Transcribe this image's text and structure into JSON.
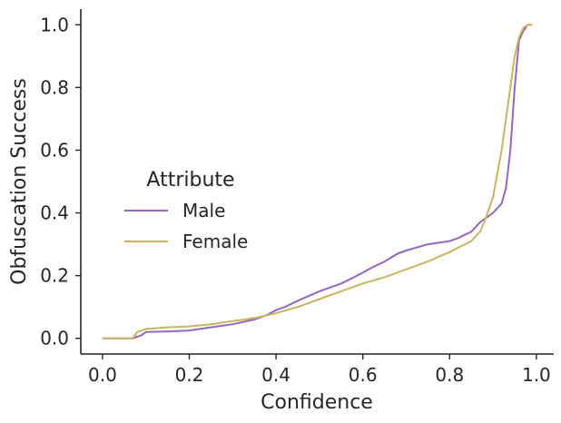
{
  "chart_data": {
    "type": "line",
    "title": "",
    "xlabel": "Confidence",
    "ylabel": "Obfuscation Success",
    "xlim": [
      -0.05,
      1.04
    ],
    "ylim": [
      -0.05,
      1.05
    ],
    "xticks": [
      0.0,
      0.2,
      0.4,
      0.6,
      0.8,
      1.0
    ],
    "xtick_labels": [
      "0.0",
      "0.2",
      "0.4",
      "0.6",
      "0.8",
      "1.0"
    ],
    "yticks": [
      0.0,
      0.2,
      0.4,
      0.6,
      0.8,
      1.0
    ],
    "ytick_labels": [
      "0.0",
      "0.2",
      "0.4",
      "0.6",
      "0.8",
      "1.0"
    ],
    "legend": {
      "title": "Attribute",
      "position": "center-left"
    },
    "series": [
      {
        "name": "Male",
        "color": "#9467bd",
        "x": [
          0.0,
          0.07,
          0.08,
          0.09,
          0.1,
          0.15,
          0.2,
          0.25,
          0.3,
          0.35,
          0.38,
          0.4,
          0.42,
          0.45,
          0.5,
          0.55,
          0.58,
          0.6,
          0.62,
          0.65,
          0.68,
          0.7,
          0.75,
          0.8,
          0.82,
          0.85,
          0.87,
          0.9,
          0.92,
          0.93,
          0.94,
          0.95,
          0.96,
          0.97,
          0.98,
          0.99
        ],
        "y": [
          0.0,
          0.0,
          0.005,
          0.01,
          0.02,
          0.022,
          0.025,
          0.035,
          0.045,
          0.06,
          0.075,
          0.09,
          0.1,
          0.12,
          0.15,
          0.175,
          0.195,
          0.21,
          0.225,
          0.245,
          0.27,
          0.28,
          0.3,
          0.31,
          0.32,
          0.34,
          0.37,
          0.4,
          0.43,
          0.48,
          0.6,
          0.8,
          0.95,
          0.98,
          1.0,
          1.0
        ]
      },
      {
        "name": "Female",
        "color": "#c9b460",
        "x": [
          0.0,
          0.07,
          0.08,
          0.1,
          0.15,
          0.2,
          0.25,
          0.3,
          0.35,
          0.4,
          0.45,
          0.5,
          0.55,
          0.6,
          0.65,
          0.7,
          0.75,
          0.8,
          0.85,
          0.87,
          0.88,
          0.9,
          0.92,
          0.93,
          0.94,
          0.95,
          0.96,
          0.97,
          0.98,
          0.99
        ],
        "y": [
          0.0,
          0.0,
          0.02,
          0.03,
          0.035,
          0.038,
          0.045,
          0.055,
          0.065,
          0.08,
          0.1,
          0.125,
          0.15,
          0.175,
          0.195,
          0.22,
          0.245,
          0.275,
          0.31,
          0.34,
          0.37,
          0.45,
          0.6,
          0.7,
          0.8,
          0.9,
          0.96,
          0.99,
          1.0,
          1.0
        ]
      }
    ]
  }
}
